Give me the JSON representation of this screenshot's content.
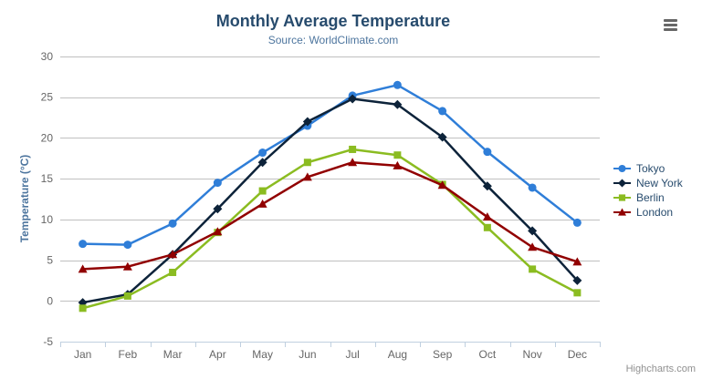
{
  "chart_data": {
    "type": "line",
    "title": "Monthly Average Temperature",
    "subtitle": "Source: WorldClimate.com",
    "xlabel": "",
    "ylabel": "Temperature (°C)",
    "categories": [
      "Jan",
      "Feb",
      "Mar",
      "Apr",
      "May",
      "Jun",
      "Jul",
      "Aug",
      "Sep",
      "Oct",
      "Nov",
      "Dec"
    ],
    "series": [
      {
        "name": "Tokyo",
        "color": "#2f7ed8",
        "marker": "circle",
        "values": [
          7.0,
          6.9,
          9.5,
          14.5,
          18.2,
          21.5,
          25.2,
          26.5,
          23.3,
          18.3,
          13.9,
          9.6
        ]
      },
      {
        "name": "New York",
        "color": "#0d233a",
        "marker": "diamond",
        "values": [
          -0.2,
          0.8,
          5.7,
          11.3,
          17.0,
          22.0,
          24.8,
          24.1,
          20.1,
          14.1,
          8.6,
          2.5
        ]
      },
      {
        "name": "Berlin",
        "color": "#8bbc21",
        "marker": "square",
        "values": [
          -0.9,
          0.6,
          3.5,
          8.4,
          13.5,
          17.0,
          18.6,
          17.9,
          14.3,
          9.0,
          3.9,
          1.0
        ]
      },
      {
        "name": "London",
        "color": "#910000",
        "marker": "triangle",
        "values": [
          3.9,
          4.2,
          5.7,
          8.5,
          11.9,
          15.2,
          17.0,
          16.6,
          14.2,
          10.3,
          6.6,
          4.8
        ]
      }
    ],
    "ylim": [
      -5,
      30
    ],
    "yticks": [
      -5,
      0,
      5,
      10,
      15,
      20,
      25,
      30
    ],
    "grid": true,
    "grid_color": "#c0c0c0",
    "axis_line_color": "#c0d0e0",
    "legend_position": "right"
  },
  "credits": {
    "label": "Highcharts.com"
  },
  "export_menu": {
    "icon": "hamburger-icon"
  }
}
